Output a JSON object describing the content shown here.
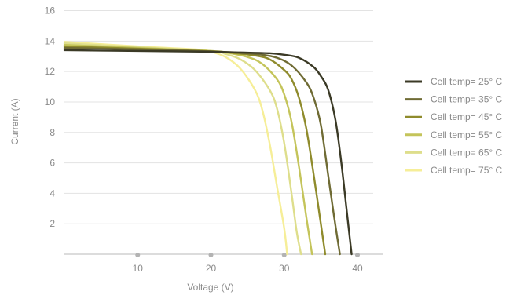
{
  "chart_data": {
    "type": "line",
    "xlabel": "Voltage (V)",
    "ylabel": "Current (A)",
    "xlim": [
      0,
      42
    ],
    "ylim": [
      0,
      16
    ],
    "xticks": [
      10,
      20,
      30,
      40
    ],
    "yticks": [
      2,
      4,
      6,
      8,
      10,
      12,
      14,
      16
    ],
    "grid": "horizontal",
    "legend_position": "right",
    "series": [
      {
        "name": "Cell temp= 25° C",
        "color": "#3b3a26",
        "points": [
          [
            0,
            13.4
          ],
          [
            10,
            13.35
          ],
          [
            20,
            13.3
          ],
          [
            24,
            13.25
          ],
          [
            28,
            13.2
          ],
          [
            30,
            13.1
          ],
          [
            32,
            12.9
          ],
          [
            34,
            12.3
          ],
          [
            35,
            11.7
          ],
          [
            36,
            10.8
          ],
          [
            37,
            8.8
          ],
          [
            37.8,
            6.0
          ],
          [
            38.5,
            3.0
          ],
          [
            39.2,
            0
          ]
        ]
      },
      {
        "name": "Cell temp= 35° C",
        "color": "#6f6b34",
        "points": [
          [
            0,
            13.55
          ],
          [
            10,
            13.45
          ],
          [
            20,
            13.32
          ],
          [
            24,
            13.22
          ],
          [
            27,
            13.1
          ],
          [
            29,
            12.9
          ],
          [
            31,
            12.4
          ],
          [
            33,
            11.3
          ],
          [
            34,
            10.3
          ],
          [
            35,
            8.5
          ],
          [
            36,
            5.2
          ],
          [
            36.8,
            2.5
          ],
          [
            37.6,
            0
          ]
        ]
      },
      {
        "name": "Cell temp= 45° C",
        "color": "#8f8b2c",
        "points": [
          [
            0,
            13.65
          ],
          [
            10,
            13.5
          ],
          [
            20,
            13.33
          ],
          [
            23,
            13.22
          ],
          [
            26,
            13.05
          ],
          [
            28,
            12.8
          ],
          [
            30,
            12.1
          ],
          [
            31,
            11.5
          ],
          [
            32,
            10.3
          ],
          [
            33,
            8.3
          ],
          [
            34,
            5.3
          ],
          [
            35,
            2.0
          ],
          [
            35.6,
            0
          ]
        ]
      },
      {
        "name": "Cell temp= 55° C",
        "color": "#c4c45a",
        "points": [
          [
            0,
            13.75
          ],
          [
            10,
            13.55
          ],
          [
            20,
            13.35
          ],
          [
            22,
            13.25
          ],
          [
            25,
            12.95
          ],
          [
            27,
            12.5
          ],
          [
            29,
            11.5
          ],
          [
            30,
            10.5
          ],
          [
            31,
            8.7
          ],
          [
            32,
            5.8
          ],
          [
            33,
            2.5
          ],
          [
            33.8,
            0
          ]
        ]
      },
      {
        "name": "Cell temp= 65° C",
        "color": "#dede8c",
        "points": [
          [
            0,
            13.85
          ],
          [
            10,
            13.6
          ],
          [
            20,
            13.35
          ],
          [
            22,
            13.15
          ],
          [
            24,
            12.8
          ],
          [
            26,
            12.1
          ],
          [
            28,
            10.8
          ],
          [
            29,
            9.6
          ],
          [
            30,
            7.3
          ],
          [
            31,
            4.0
          ],
          [
            31.7,
            1.5
          ],
          [
            32.3,
            0
          ]
        ]
      },
      {
        "name": "Cell temp= 75° C",
        "color": "#f6ee98",
        "points": [
          [
            0,
            13.95
          ],
          [
            10,
            13.65
          ],
          [
            18,
            13.45
          ],
          [
            20,
            13.3
          ],
          [
            22,
            12.95
          ],
          [
            24,
            12.2
          ],
          [
            26,
            10.8
          ],
          [
            27,
            9.5
          ],
          [
            28,
            7.3
          ],
          [
            29,
            4.5
          ],
          [
            30,
            1.7
          ],
          [
            30.4,
            0
          ]
        ]
      }
    ]
  }
}
